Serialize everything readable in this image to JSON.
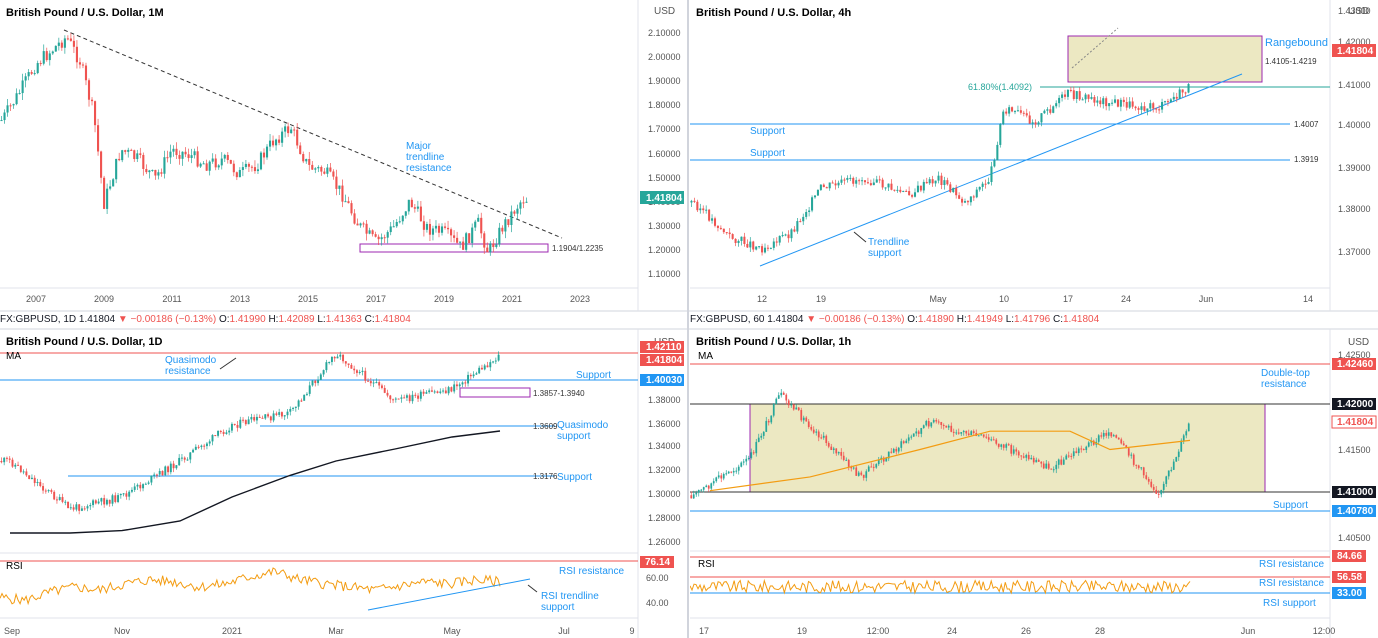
{
  "colors": {
    "up": "#26a69a",
    "down": "#ef5350",
    "blue": "#2962ff",
    "label_blue": "#2196f3",
    "purple": "#9c27b0",
    "orange": "#f39c12",
    "range_fill": "#ece8c2",
    "axis_text": "#555"
  },
  "panels": [
    {
      "id": "monthly",
      "title": "British Pound / U.S. Dollar, 1M",
      "currency": "USD",
      "price_labels": [
        "2.10000",
        "2.00000",
        "1.90000",
        "1.80000",
        "1.70000",
        "1.60000",
        "1.50000",
        "1.40000",
        "1.30000",
        "1.20000",
        "1.10000"
      ],
      "time_labels": [
        "2007",
        "2009",
        "2011",
        "2013",
        "2015",
        "2017",
        "2019",
        "2021",
        "2023"
      ],
      "last_price": "1.41804",
      "annotations": [
        {
          "text": "Major"
        },
        {
          "text": "trendline"
        },
        {
          "text": "resistance"
        },
        {
          "text": "1.1904/1.2235"
        }
      ]
    },
    {
      "id": "h4",
      "title": "British Pound / U.S. Dollar, 4h",
      "currency": "USD",
      "price_labels": [
        "1.43000",
        "1.42000",
        "1.41000",
        "1.40000",
        "1.39000",
        "1.38000",
        "1.37000"
      ],
      "time_labels": [
        "12",
        "19",
        "May",
        "10",
        "17",
        "24",
        "Jun",
        "14"
      ],
      "last_price": "1.41804",
      "annotations": [
        {
          "text": "Rangebound"
        },
        {
          "text": "1.4105-1.4219"
        },
        {
          "text": "61.80%(1.4092)"
        },
        {
          "text": "Support"
        },
        {
          "text": "1.4007"
        },
        {
          "text": "Support"
        },
        {
          "text": "1.3919"
        },
        {
          "text": "Trendline"
        },
        {
          "text": "support"
        }
      ]
    },
    {
      "id": "daily",
      "title": "British Pound / U.S. Dollar, 1D",
      "currency": "USD",
      "symbol_line": {
        "symbol": "FX:GBPUSD, 1D",
        "price": "1.41804",
        "change": "▼ −0.00186 (−0.13%)",
        "o_label": "O:",
        "o": "1.41990",
        "h_label": "H:",
        "h": "1.42089",
        "l_label": "L:",
        "l": "1.41363",
        "c_label": "C:",
        "c": "1.41804"
      },
      "price_labels": [
        "1.40000",
        "1.38000",
        "1.36000",
        "1.34000",
        "1.32000",
        "1.30000",
        "1.28000",
        "1.26000"
      ],
      "rsi_labels": [
        "60.00",
        "40.00"
      ],
      "time_labels": [
        "Sep",
        "Nov",
        "2021",
        "Mar",
        "May",
        "Jul",
        "9"
      ],
      "last_price": "1.41804",
      "tag_prices": [
        "1.42110",
        "1.40030"
      ],
      "rsi_value": "76.14",
      "rsi_top": "76.14",
      "ma_label": "MA",
      "rsi_label": "RSI",
      "annotations": [
        {
          "text": "Quasimodo"
        },
        {
          "text": "resistance"
        },
        {
          "text": "Support"
        },
        {
          "text": "1.3857-1.3940"
        },
        {
          "text": "1.3609"
        },
        {
          "text": "Quasimodo"
        },
        {
          "text": "support"
        },
        {
          "text": "1.3176"
        },
        {
          "text": "Support"
        },
        {
          "text": "RSI resistance"
        },
        {
          "text": "RSI trendline"
        },
        {
          "text": "support"
        }
      ]
    },
    {
      "id": "h1",
      "title": "British Pound / U.S. Dollar, 1h",
      "currency": "USD",
      "symbol_line": {
        "symbol": "FX:GBPUSD, 60",
        "price": "1.41804",
        "change": "▼ −0.00186 (−0.13%)",
        "o_label": "O:",
        "o": "1.41890",
        "h_label": "H:",
        "h": "1.41949",
        "l_label": "L:",
        "l": "1.41796",
        "c_label": "C:",
        "c": "1.41804"
      },
      "price_labels": [
        "1.42500",
        "1.41500",
        "1.40500"
      ],
      "time_labels": [
        "17",
        "19",
        "12:00",
        "24",
        "26",
        "28",
        "Jun",
        "12:00"
      ],
      "last_price": "1.41804",
      "tag_prices": [
        "1.42460",
        "1.42000",
        "1.41000",
        "1.40780"
      ],
      "rsi_tags": [
        "84.66",
        "56.58",
        "33.00"
      ],
      "ma_label": "MA",
      "rsi_label": "RSI",
      "annotations": [
        {
          "text": "Double-top"
        },
        {
          "text": "resistance"
        },
        {
          "text": "Support"
        },
        {
          "text": "RSI resistance"
        },
        {
          "text": "RSI resistance"
        },
        {
          "text": "RSI support"
        }
      ]
    }
  ],
  "chart_data": [
    {
      "type": "candlestick",
      "title": "British Pound / U.S. Dollar, 1M",
      "x_range": [
        "2006",
        "2024"
      ],
      "ylim": [
        1.05,
        2.15
      ],
      "series": [
        {
          "x": [
            2006.0,
            2006.5,
            2007.0,
            2007.5,
            2007.9,
            2008.3,
            2008.7,
            2009.0,
            2009.5,
            2010.0,
            2010.5,
            2011.0,
            2011.5,
            2012.0,
            2012.5,
            2013.0,
            2013.5,
            2014.0,
            2014.5,
            2015.0,
            2015.5,
            2016.0,
            2016.5,
            2017.0,
            2017.5,
            2018.0,
            2018.5,
            2019.0,
            2019.5,
            2020.0,
            2020.3,
            2020.7,
            2021.0,
            2021.3
          ],
          "y": [
            1.74,
            1.85,
            1.97,
            2.03,
            2.08,
            1.98,
            1.76,
            1.4,
            1.62,
            1.58,
            1.5,
            1.62,
            1.6,
            1.56,
            1.58,
            1.52,
            1.56,
            1.66,
            1.71,
            1.55,
            1.53,
            1.44,
            1.31,
            1.24,
            1.3,
            1.41,
            1.3,
            1.28,
            1.22,
            1.32,
            1.2,
            1.3,
            1.36,
            1.418
          ]
        }
      ],
      "levels": [
        {
          "name": "1.1904/1.2235",
          "from": 1.1904,
          "to": 1.2235
        }
      ]
    },
    {
      "type": "candlestick",
      "title": "British Pound / U.S. Dollar, 4h",
      "ylim": [
        1.364,
        1.433
      ],
      "series": [
        {
          "x": [
            "Apr 06",
            "Apr 09",
            "Apr 12",
            "Apr 15",
            "Apr 19",
            "Apr 22",
            "Apr 26",
            "Apr 29",
            "May 03",
            "May 06",
            "May 10",
            "May 13",
            "May 17",
            "May 20",
            "May 24",
            "May 27",
            "May 28"
          ],
          "y": [
            1.385,
            1.375,
            1.372,
            1.376,
            1.389,
            1.392,
            1.387,
            1.392,
            1.385,
            1.392,
            1.412,
            1.408,
            1.416,
            1.414,
            1.413,
            1.412,
            1.418
          ]
        }
      ],
      "levels": [
        {
          "name": "Rangebound",
          "from": 1.4105,
          "to": 1.4219
        },
        {
          "name": "61.80%",
          "value": 1.4092
        },
        {
          "name": "Support",
          "value": 1.4007
        },
        {
          "name": "Support",
          "value": 1.3919
        }
      ]
    },
    {
      "type": "candlestick",
      "title": "British Pound / U.S. Dollar, 1D",
      "ylim": [
        1.245,
        1.435
      ],
      "series": [
        {
          "name": "MA",
          "x": [
            "Sep",
            "Oct",
            "Nov",
            "Dec",
            "Jan",
            "Feb",
            "Mar",
            "Apr",
            "May",
            "Jun"
          ],
          "y": [
            1.27,
            1.27,
            1.272,
            1.28,
            1.3,
            1.318,
            1.33,
            1.34,
            1.35,
            1.355
          ]
        },
        {
          "x": [
            "Sep",
            "Oct",
            "Nov",
            "Dec",
            "Jan",
            "Feb",
            "Mar",
            "Apr",
            "May",
            "Jun"
          ],
          "y": [
            1.33,
            1.29,
            1.3,
            1.33,
            1.36,
            1.37,
            1.42,
            1.38,
            1.39,
            1.418
          ]
        }
      ],
      "levels": [
        {
          "name": "Quasimodo resistance",
          "value": 1.4211
        },
        {
          "name": "Support",
          "value": 1.4003
        },
        {
          "name": "1.3857-1.3940",
          "from": 1.3857,
          "to": 1.394
        },
        {
          "name": "Quasimodo support",
          "value": 1.3609
        },
        {
          "name": "Support",
          "value": 1.3176
        }
      ],
      "rsi": {
        "ylim": [
          25,
          85
        ],
        "resistance": 76.14,
        "values": [
          45,
          42,
          50,
          55,
          52,
          58,
          62,
          60,
          55,
          58,
          65,
          70,
          62,
          58,
          55,
          52,
          56,
          60,
          58,
          62,
          60
        ]
      }
    },
    {
      "type": "candlestick",
      "title": "British Pound / U.S. Dollar, 1h",
      "ylim": [
        1.401,
        1.4275
      ],
      "series": [
        {
          "name": "MA",
          "x": [
            "17",
            "19",
            "20",
            "24",
            "26",
            "27",
            "28"
          ],
          "y": [
            1.4105,
            1.412,
            1.415,
            1.417,
            1.417,
            1.415,
            1.416
          ]
        },
        {
          "x": [
            "17",
            "18",
            "19",
            "20",
            "21",
            "24",
            "25",
            "26",
            "27",
            "28"
          ],
          "y": [
            1.41,
            1.414,
            1.421,
            1.412,
            1.418,
            1.416,
            1.413,
            1.417,
            1.41,
            1.418
          ]
        }
      ],
      "levels": [
        {
          "name": "Double-top resistance",
          "value": 1.4246
        },
        {
          "name": "Range",
          "from": 1.41,
          "to": 1.42
        },
        {
          "name": "Support",
          "value": 1.4078
        }
      ],
      "rsi": {
        "ylim": [
          20,
          95
        ],
        "resistance": [
          84.66,
          56.58
        ],
        "support": 33.0
      }
    }
  ]
}
